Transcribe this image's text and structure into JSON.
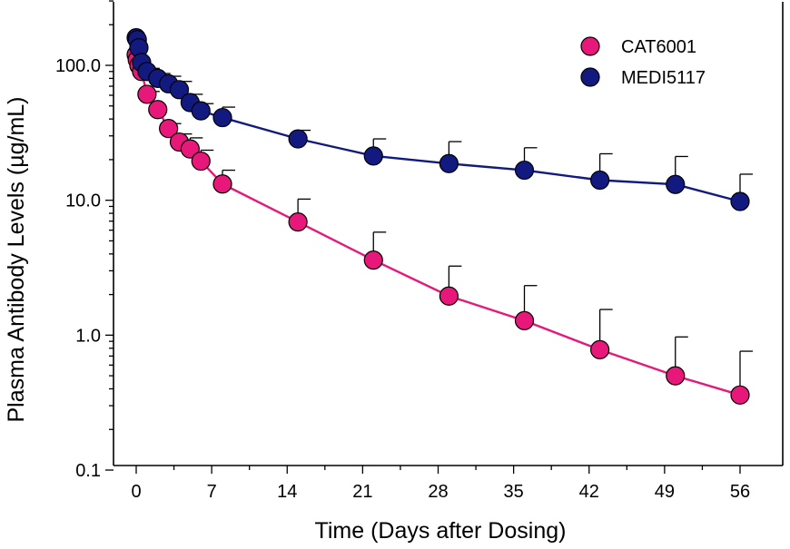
{
  "chart_data": {
    "type": "line",
    "title": "",
    "xlabel": "Time (Days after Dosing)",
    "ylabel": "Plasma Antibody Levels (µg/mL)",
    "xlim": [
      -2,
      60
    ],
    "ylim": [
      0.1,
      300
    ],
    "y_scale": "log",
    "grid": false,
    "legend_position": "top-right",
    "x_ticks": [
      0,
      7,
      14,
      21,
      28,
      35,
      42,
      49,
      56
    ],
    "x_tick_labels": [
      "0",
      "7",
      "14",
      "21",
      "28",
      "35",
      "42",
      "49",
      "56"
    ],
    "y_ticks": [
      0.1,
      1,
      10,
      100
    ],
    "y_tick_labels": [
      "0.1",
      "1.0",
      "10.0",
      "100.0"
    ],
    "error_bars": "upper",
    "series": [
      {
        "name": "CAT6001",
        "color": "#e8187a",
        "line_color": "#e8187a",
        "x": [
          0,
          0.1,
          0.25,
          0.5,
          1,
          2,
          3,
          4,
          5,
          6,
          8,
          15,
          22,
          29,
          36,
          43,
          50,
          56
        ],
        "y": [
          120,
          110,
          100,
          90,
          61,
          47,
          34,
          27,
          24,
          19.5,
          13.2,
          6.9,
          3.6,
          1.95,
          1.28,
          0.78,
          0.5,
          0.36
        ],
        "err": [
          0,
          0,
          0,
          0,
          3,
          0,
          3,
          4,
          5,
          4,
          3.5,
          3.3,
          2.2,
          1.3,
          1.05,
          0.77,
          0.47,
          0.4
        ]
      },
      {
        "name": "MEDI5117",
        "color": "#121a80",
        "line_color": "#121a80",
        "x": [
          0,
          0.1,
          0.25,
          0.5,
          1,
          2,
          3,
          4,
          5,
          6,
          8,
          15,
          22,
          29,
          36,
          43,
          50,
          56
        ],
        "y": [
          160,
          155,
          135,
          105,
          90,
          80,
          73,
          66,
          53,
          46,
          41,
          28.5,
          21.3,
          18.7,
          16.7,
          14.1,
          13.1,
          9.8
        ],
        "err": [
          0,
          0,
          0,
          0,
          5,
          7,
          10,
          10,
          8,
          6,
          8,
          4.5,
          7.2,
          8.5,
          7.8,
          8,
          8,
          5.8
        ]
      }
    ]
  }
}
